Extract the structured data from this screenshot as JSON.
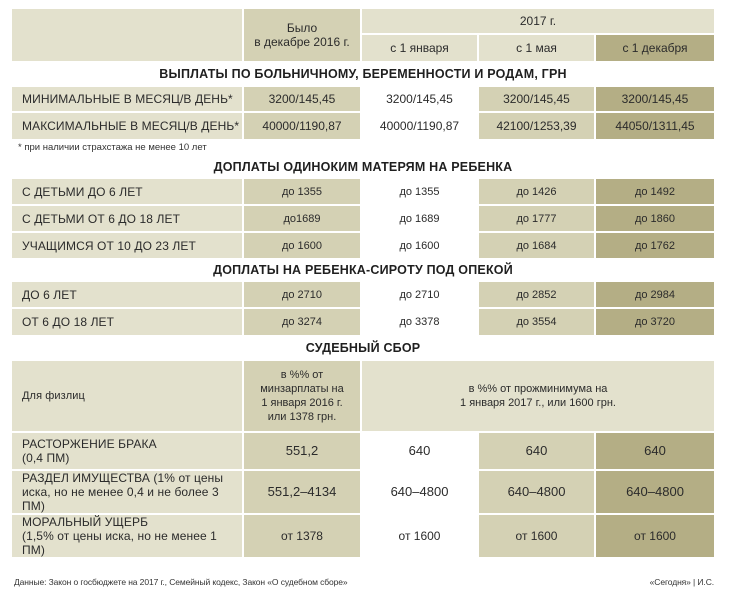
{
  "header": {
    "was": "Было\nв декабре 2016 г.",
    "year": "2017 г.",
    "jan": "с 1 января",
    "may": "с 1 мая",
    "dec": "с 1 декабря"
  },
  "sections": {
    "sick": "ВЫПЛАТЫ ПО БОЛЬНИЧНОМУ, БЕРЕМЕННОСТИ И РОДАМ, ГРН",
    "single": "ДОПЛАТЫ ОДИНОКИМ МАТЕРЯМ НА РЕБЕНКА",
    "orphan": "ДОПЛАТЫ НА РЕБЕНКА-СИРОТУ ПОД ОПЕКОЙ",
    "court": "СУДЕБНЫЙ СБОР"
  },
  "sick_rows": [
    {
      "label": "МИНИМАЛЬНЫЕ В МЕСЯЦ/В ДЕНЬ*",
      "v": [
        "3200/145,45",
        "3200/145,45",
        "3200/145,45",
        "3200/145,45"
      ]
    },
    {
      "label": "МАКСИМАЛЬНЫЕ В МЕСЯЦ/В ДЕНЬ*",
      "v": [
        "40000/1190,87",
        "40000/1190,87",
        "42100/1253,39",
        "44050/1311,45"
      ]
    }
  ],
  "sick_note": "* при наличии страхстажа не менее 10 лет",
  "single_rows": [
    {
      "label": "С ДЕТЬМИ ДО 6 ЛЕТ",
      "v": [
        "до 1355",
        "до 1355",
        "до 1426",
        "до 1492"
      ]
    },
    {
      "label": "С ДЕТЬМИ ОТ 6 ДО 18 ЛЕТ",
      "v": [
        "до1689",
        "до 1689",
        "до 1777",
        "до 1860"
      ]
    },
    {
      "label": "УЧАЩИМСЯ ОТ 10 ДО 23 ЛЕТ",
      "v": [
        "до 1600",
        "до 1600",
        "до 1684",
        "до 1762"
      ]
    }
  ],
  "orphan_rows": [
    {
      "label": "ДО 6 ЛЕТ",
      "v": [
        "до 2710",
        "до 2710",
        "до 2852",
        "до 2984"
      ]
    },
    {
      "label": "ОТ 6 ДО 18 ЛЕТ",
      "v": [
        "до 3274",
        "до 3378",
        "до 3554",
        "до 3720"
      ]
    }
  ],
  "court_head": {
    "label": "Для физлиц",
    "c1": "в %% от\nминзарплаты на\n1 января 2016 г.\nили 1378 грн.",
    "c2": "в %% от прожминимума на\n1 января 2017 г., или 1600 грн."
  },
  "court_rows": [
    {
      "label": "РАСТОРЖЕНИЕ БРАКА\n(0,4 ПМ)",
      "v": [
        "551,2",
        "640",
        "640",
        "640"
      ]
    },
    {
      "label": "РАЗДЕЛ ИМУЩЕСТВА (1% от цены\nиска, но не менее 0,4 и не более 3 ПМ)",
      "v": [
        "551,2–4134",
        "640–4800",
        "640–4800",
        "640–4800"
      ]
    },
    {
      "label": "МОРАЛЬНЫЙ УЩЕРБ\n(1,5% от цены иска, но не менее 1 ПМ)",
      "v": [
        "от 1378",
        "от 1600",
        "от 1600",
        "от 1600"
      ]
    }
  ],
  "footer": {
    "source": "Данные: Закон о госбюджете на 2017 г., Семейный кодекс, Закон «О судебном сборе»",
    "brand": "«Сегодня» | И.С."
  }
}
